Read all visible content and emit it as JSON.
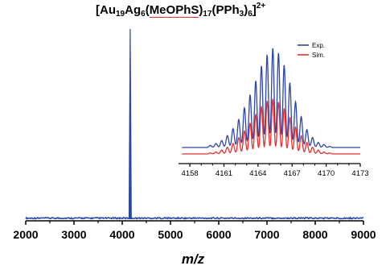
{
  "chart_data": [
    {
      "type": "line",
      "title_parts": [
        "[Au",
        "19",
        "Ag",
        "6",
        "(",
        "MeOPhS",
        ")",
        "17",
        "(PPh",
        "3",
        ")",
        "6",
        "]",
        "2+"
      ],
      "xlabel": "m/z",
      "ylabel": "",
      "xlim": [
        2000,
        9000
      ],
      "ylim": [
        0,
        1
      ],
      "x_ticks": [
        "2000",
        "3000",
        "4000",
        "5000",
        "6000",
        "7000",
        "8000",
        "9000"
      ],
      "y_ticks": [],
      "grid": false,
      "color": "#2b47a8",
      "peaks": [
        {
          "x": 4164.8,
          "y": 1.0
        }
      ]
    },
    {
      "type": "line",
      "inset": true,
      "xlim": [
        4157,
        4173
      ],
      "x_ticks": [
        "4158",
        "4161",
        "4164",
        "4167",
        "4170",
        "4173"
      ],
      "legend_position": "top-right",
      "grid": false,
      "series": [
        {
          "name": "Exp.",
          "color": "#2b47a8",
          "peaks": [
            {
              "x": 4159.8,
              "y": 0.02
            },
            {
              "x": 4160.3,
              "y": 0.04
            },
            {
              "x": 4160.8,
              "y": 0.07
            },
            {
              "x": 4161.3,
              "y": 0.12
            },
            {
              "x": 4161.8,
              "y": 0.19
            },
            {
              "x": 4162.3,
              "y": 0.28
            },
            {
              "x": 4162.8,
              "y": 0.4
            },
            {
              "x": 4163.3,
              "y": 0.53
            },
            {
              "x": 4163.8,
              "y": 0.67
            },
            {
              "x": 4164.3,
              "y": 0.82
            },
            {
              "x": 4164.8,
              "y": 0.93
            },
            {
              "x": 4165.3,
              "y": 1.0
            },
            {
              "x": 4165.8,
              "y": 0.95
            },
            {
              "x": 4166.3,
              "y": 0.83
            },
            {
              "x": 4166.8,
              "y": 0.65
            },
            {
              "x": 4167.3,
              "y": 0.46
            },
            {
              "x": 4167.8,
              "y": 0.31
            },
            {
              "x": 4168.3,
              "y": 0.18
            },
            {
              "x": 4168.8,
              "y": 0.1
            },
            {
              "x": 4169.3,
              "y": 0.05
            },
            {
              "x": 4169.8,
              "y": 0.03
            },
            {
              "x": 4170.3,
              "y": 0.01
            }
          ]
        },
        {
          "name": "Sim.",
          "color": "#e83030",
          "peaks": [
            {
              "x": 4159.8,
              "y": 0.01
            },
            {
              "x": 4160.3,
              "y": 0.02
            },
            {
              "x": 4160.8,
              "y": 0.04
            },
            {
              "x": 4161.3,
              "y": 0.07
            },
            {
              "x": 4161.8,
              "y": 0.11
            },
            {
              "x": 4162.3,
              "y": 0.17
            },
            {
              "x": 4162.8,
              "y": 0.24
            },
            {
              "x": 4163.3,
              "y": 0.32
            },
            {
              "x": 4163.8,
              "y": 0.41
            },
            {
              "x": 4164.3,
              "y": 0.49
            },
            {
              "x": 4164.8,
              "y": 0.55
            },
            {
              "x": 4165.3,
              "y": 0.57
            },
            {
              "x": 4165.8,
              "y": 0.54
            },
            {
              "x": 4166.3,
              "y": 0.47
            },
            {
              "x": 4166.8,
              "y": 0.38
            },
            {
              "x": 4167.3,
              "y": 0.28
            },
            {
              "x": 4167.8,
              "y": 0.19
            },
            {
              "x": 4168.3,
              "y": 0.12
            },
            {
              "x": 4168.8,
              "y": 0.07
            },
            {
              "x": 4169.3,
              "y": 0.04
            },
            {
              "x": 4169.8,
              "y": 0.02
            },
            {
              "x": 4170.3,
              "y": 0.01
            }
          ]
        }
      ]
    }
  ]
}
